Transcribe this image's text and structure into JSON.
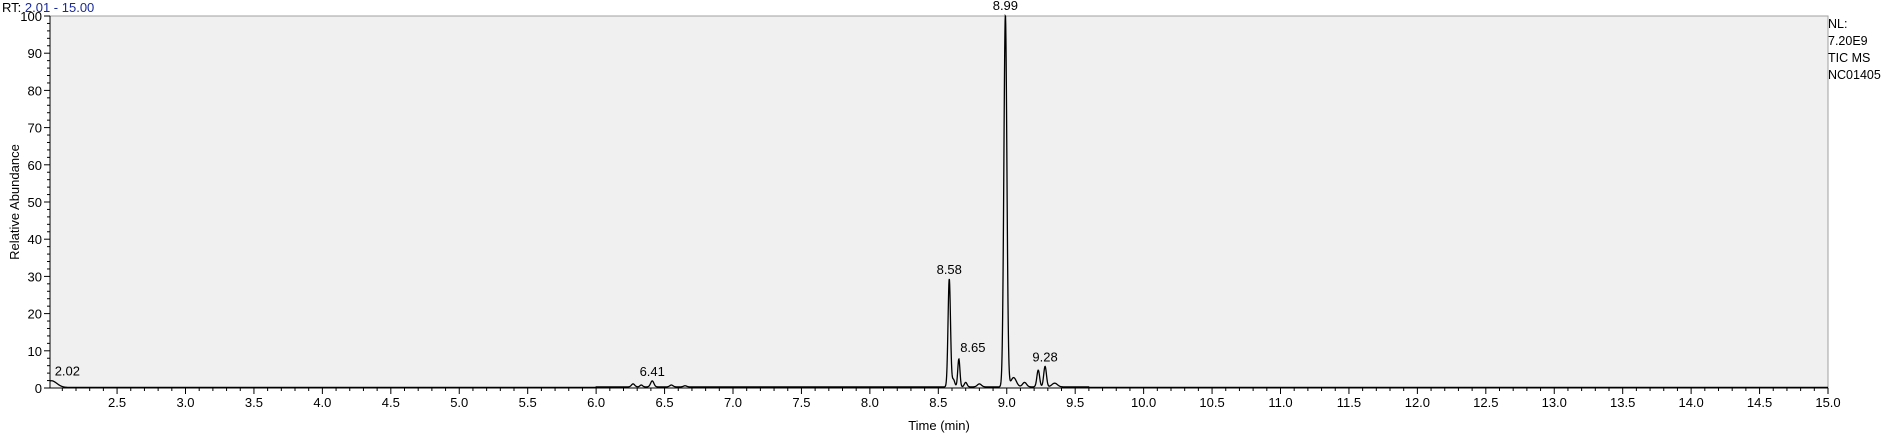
{
  "header": {
    "rt_label": "RT:",
    "rt_range": "2.01 - 15.00"
  },
  "info": {
    "nl_label": "NL:",
    "nl_value": "7.20E9",
    "scan_type": "TIC  MS",
    "sample_id": "NC01405"
  },
  "colors": {
    "plot_background": "#f0f0f0",
    "trace": "#000000",
    "header_range": "#1a2a9c"
  },
  "chart_data": {
    "type": "line",
    "xlabel": "Time (min)",
    "ylabel": "Relative Abundance",
    "xlim": [
      2.01,
      15.0
    ],
    "ylim": [
      0,
      100
    ],
    "grid": false,
    "x_ticks": [
      "2.5",
      "3.0",
      "3.5",
      "4.0",
      "4.5",
      "5.0",
      "5.5",
      "6.0",
      "6.5",
      "7.0",
      "7.5",
      "8.0",
      "8.5",
      "9.0",
      "9.5",
      "10.0",
      "10.5",
      "11.0",
      "11.5",
      "12.0",
      "12.5",
      "13.0",
      "13.5",
      "14.0",
      "14.5",
      "15.0"
    ],
    "y_ticks": [
      "0",
      "10",
      "20",
      "30",
      "40",
      "50",
      "60",
      "70",
      "80",
      "90",
      "100"
    ],
    "peaks": [
      {
        "rt": 2.02,
        "height": 1.8,
        "width": 0.04,
        "label": "2.02"
      },
      {
        "rt": 6.27,
        "height": 0.8,
        "width": 0.012
      },
      {
        "rt": 6.33,
        "height": 0.5,
        "width": 0.01
      },
      {
        "rt": 6.41,
        "height": 1.6,
        "width": 0.012,
        "label": "6.41"
      },
      {
        "rt": 6.55,
        "height": 0.5,
        "width": 0.012
      },
      {
        "rt": 6.65,
        "height": 0.3,
        "width": 0.012
      },
      {
        "rt": 8.58,
        "height": 29.0,
        "width": 0.009,
        "label": "8.58"
      },
      {
        "rt": 8.61,
        "height": 2.0,
        "width": 0.01
      },
      {
        "rt": 8.65,
        "height": 7.5,
        "width": 0.008,
        "label": "8.65"
      },
      {
        "rt": 8.7,
        "height": 1.2,
        "width": 0.01
      },
      {
        "rt": 8.8,
        "height": 0.8,
        "width": 0.015
      },
      {
        "rt": 8.99,
        "height": 100.0,
        "width": 0.011,
        "label": "8.99"
      },
      {
        "rt": 9.05,
        "height": 2.5,
        "width": 0.02
      },
      {
        "rt": 9.13,
        "height": 1.2,
        "width": 0.015
      },
      {
        "rt": 9.23,
        "height": 4.5,
        "width": 0.01
      },
      {
        "rt": 9.28,
        "height": 5.5,
        "width": 0.01,
        "label": "9.28"
      },
      {
        "rt": 9.35,
        "height": 1.0,
        "width": 0.02
      }
    ]
  }
}
